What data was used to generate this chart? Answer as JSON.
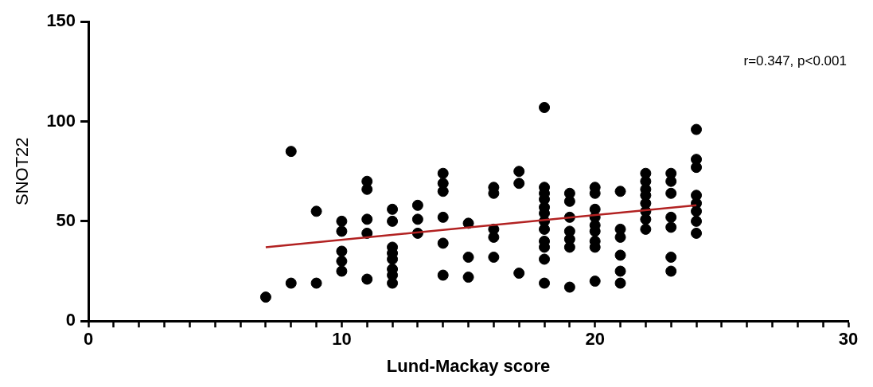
{
  "chart_data": {
    "type": "scatter",
    "xlabel": "Lund-Mackay score",
    "ylabel": "SNOT22",
    "annotations": [
      "r=0.347, p<0.001"
    ],
    "xlim": [
      0,
      30
    ],
    "xticks": [
      0,
      {
        "value": 1,
        "label": null
      },
      {
        "value": 2,
        "label": null
      },
      {
        "value": 3,
        "label": null
      },
      {
        "value": 4,
        "label": null
      },
      {
        "value": 5,
        "label": null
      },
      {
        "value": 6,
        "label": null
      },
      {
        "value": 7,
        "label": null
      },
      {
        "value": 8,
        "label": null
      },
      {
        "value": 9,
        "label": null
      },
      10,
      {
        "value": 11,
        "label": null
      },
      {
        "value": 12,
        "label": null
      },
      {
        "value": 13,
        "label": null
      },
      {
        "value": 14,
        "label": null
      },
      {
        "value": 15,
        "label": null
      },
      {
        "value": 16,
        "label": null
      },
      {
        "value": 17,
        "label": null
      },
      {
        "value": 18,
        "label": null
      },
      {
        "value": 19,
        "label": null
      },
      20,
      {
        "value": 21,
        "label": null
      },
      {
        "value": 22,
        "label": null
      },
      {
        "value": 23,
        "label": null
      },
      {
        "value": 24,
        "label": null
      },
      {
        "value": 25,
        "label": null
      },
      {
        "value": 26,
        "label": null
      },
      {
        "value": 27,
        "label": null
      },
      {
        "value": 28,
        "label": null
      },
      {
        "value": 29,
        "label": null
      },
      30
    ],
    "ylim": [
      0,
      150
    ],
    "yticks": [
      0,
      50,
      100,
      150
    ],
    "grid": false,
    "legend": false,
    "marker": "circle",
    "series": [
      {
        "type": "scatter",
        "color": "#000000",
        "x": [
          7,
          8,
          8,
          9,
          9,
          10,
          10,
          10,
          10,
          10,
          11,
          11,
          11,
          11,
          11,
          12,
          12,
          12,
          12,
          12,
          12,
          12,
          12,
          13,
          13,
          13,
          14,
          14,
          14,
          14,
          14,
          14,
          15,
          15,
          15,
          16,
          16,
          16,
          16,
          16,
          17,
          17,
          17,
          18,
          18,
          18,
          18,
          18,
          18,
          18,
          18,
          18,
          18,
          18,
          18,
          19,
          19,
          19,
          19,
          19,
          19,
          19,
          20,
          20,
          20,
          20,
          20,
          20,
          20,
          20,
          20,
          21,
          21,
          21,
          21,
          21,
          21,
          22,
          22,
          22,
          22,
          22,
          22,
          22,
          22,
          23,
          23,
          23,
          23,
          23,
          23,
          23,
          24,
          24,
          24,
          24,
          24,
          24,
          24,
          24
        ],
        "values": [
          12,
          85,
          19,
          55,
          19,
          50,
          45,
          35,
          30,
          25,
          70,
          66,
          51,
          44,
          21,
          56,
          50,
          37,
          34,
          31,
          26,
          23,
          19,
          58,
          51,
          44,
          74,
          69,
          65,
          52,
          39,
          23,
          49,
          32,
          22,
          67,
          64,
          46,
          42,
          32,
          75,
          69,
          24,
          107,
          67,
          64,
          61,
          57,
          54,
          50,
          46,
          40,
          37,
          31,
          19,
          64,
          60,
          52,
          45,
          41,
          37,
          17,
          67,
          64,
          56,
          52,
          48,
          45,
          40,
          37,
          20,
          65,
          46,
          42,
          33,
          25,
          19,
          74,
          70,
          66,
          63,
          59,
          55,
          51,
          46,
          74,
          70,
          64,
          52,
          47,
          32,
          25,
          96,
          81,
          77,
          63,
          59,
          55,
          50,
          44
        ]
      },
      {
        "type": "line",
        "color": "#b22222",
        "marker": "none",
        "x": [
          7,
          24
        ],
        "values": [
          37,
          58
        ]
      }
    ]
  }
}
